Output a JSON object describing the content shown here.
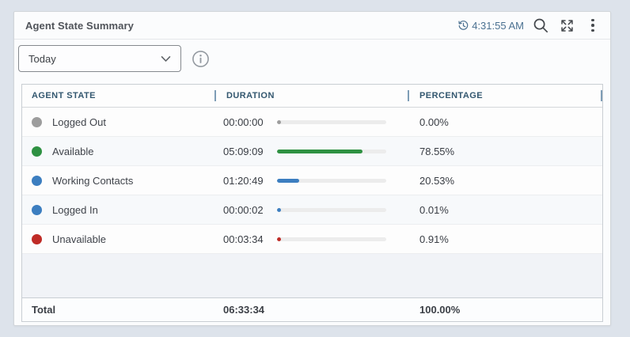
{
  "widget": {
    "title": "Agent State Summary",
    "clock_time": "4:31:55 AM"
  },
  "filter": {
    "selected_option": "Today"
  },
  "table": {
    "columns": [
      "AGENT STATE",
      "DURATION",
      "PERCENTAGE"
    ],
    "rows": [
      {
        "state": "Logged Out",
        "color": "#9d9d9d",
        "duration": "00:00:00",
        "percent": 0.0,
        "percent_label": "0.00%"
      },
      {
        "state": "Available",
        "color": "#2e9142",
        "duration": "05:09:09",
        "percent": 78.55,
        "percent_label": "78.55%"
      },
      {
        "state": "Working Contacts",
        "color": "#3c7ec0",
        "duration": "01:20:49",
        "percent": 20.53,
        "percent_label": "20.53%"
      },
      {
        "state": "Logged In",
        "color": "#3c7ec0",
        "duration": "00:00:02",
        "percent": 0.01,
        "percent_label": "0.01%"
      },
      {
        "state": "Unavailable",
        "color": "#bf2b26",
        "duration": "00:03:34",
        "percent": 0.91,
        "percent_label": "0.91%"
      }
    ],
    "total": {
      "label": "Total",
      "duration": "06:33:34",
      "percent_label": "100.00%"
    }
  },
  "chart_data": {
    "type": "bar",
    "categories": [
      "Logged Out",
      "Available",
      "Working Contacts",
      "Logged In",
      "Unavailable"
    ],
    "values": [
      0.0,
      78.55,
      20.53,
      0.01,
      0.91
    ],
    "durations": [
      "00:00:00",
      "05:09:09",
      "01:20:49",
      "00:00:02",
      "00:03:34"
    ],
    "title": "Agent State Summary",
    "xlabel": "",
    "ylabel": "Percentage",
    "ylim": [
      0,
      100
    ]
  },
  "colors": {
    "header_text": "#33576f",
    "time_text": "#4b7191",
    "bar_track": "#ececec",
    "page_background": "#dde3eb"
  }
}
